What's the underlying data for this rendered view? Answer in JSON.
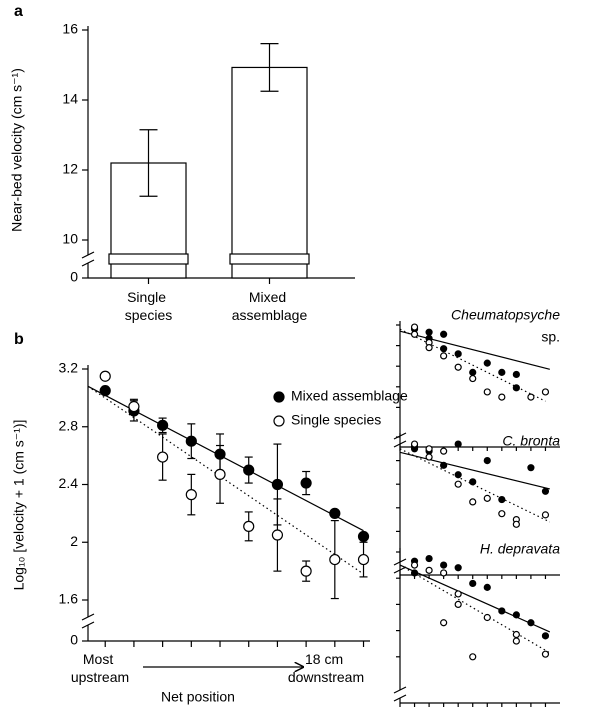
{
  "chart_data": [
    {
      "type": "bar",
      "panel_label": "a",
      "ylabel": "Near-bed velocity (cm s⁻¹)",
      "categories": [
        "Single species",
        "Mixed assemblage"
      ],
      "values": [
        12.2,
        14.93
      ],
      "errors": [
        0.95,
        0.68
      ],
      "color": "#ffffff",
      "ylim": [
        10,
        16
      ],
      "yticks": [
        0,
        10,
        12,
        14,
        16
      ],
      "axis_break": true
    },
    {
      "type": "scatter",
      "panel_label": "b",
      "ylabel": "Log₁₀ [velocity + 1 (cm s⁻¹)]",
      "xlabel": "Net position",
      "annotations": [
        "Most upstream",
        "18 cm downstream"
      ],
      "legend": "upper right",
      "x": [
        1,
        2,
        3,
        4,
        5,
        6,
        7,
        8,
        9,
        10
      ],
      "xlim": [
        0.4,
        10.4
      ],
      "xticks": [
        1,
        2,
        3,
        4,
        5,
        6,
        7,
        8,
        9,
        10
      ],
      "ylim": [
        1.6,
        3.2
      ],
      "yticks": [
        0,
        1.6,
        2.0,
        2.4,
        2.8,
        3.2
      ],
      "axis_break": true,
      "series": [
        {
          "name": "Mixed assemblage",
          "color": "#000000",
          "marker": "filled",
          "line": "solid",
          "values": [
            3.05,
            2.91,
            2.81,
            2.7,
            2.61,
            2.5,
            2.4,
            2.41,
            2.2,
            2.04
          ],
          "errors": [
            null,
            0.07,
            0.05,
            0.12,
            0.14,
            0.09,
            0.28,
            0.08,
            null,
            null
          ],
          "fit": {
            "x": [
              0.4,
              10.0
            ],
            "values": [
              3.08,
              2.08
            ]
          }
        },
        {
          "name": "Single species",
          "color": "#000000",
          "marker": "open",
          "line": "dotted",
          "values": [
            3.15,
            2.94,
            2.59,
            2.33,
            2.47,
            2.11,
            2.05,
            1.8,
            1.88,
            1.88
          ],
          "errors": [
            null,
            0.05,
            0.16,
            0.14,
            0.2,
            0.1,
            0.25,
            0.07,
            0.27,
            0.12
          ],
          "fit": {
            "x": [
              0.4,
              10.0
            ],
            "values": [
              3.08,
              1.78
            ]
          }
        }
      ]
    },
    {
      "type": "scatter",
      "title": "Cheumatopsyche",
      "subtitle": "sp.",
      "tick_labels": false,
      "axis_break": true,
      "xlim": [
        0,
        11
      ],
      "xticks": [
        0,
        1,
        2,
        3,
        4,
        5,
        6,
        7,
        8,
        9,
        10
      ],
      "ylim": [
        0,
        10
      ],
      "yticks": [
        2,
        4,
        6,
        8,
        10
      ],
      "series": [
        {
          "color": "#000000",
          "marker": "filled",
          "line": "solid",
          "x": [
            1,
            2,
            2,
            3,
            3,
            4,
            5,
            6,
            7,
            8,
            8
          ],
          "values": [
            9.6,
            9.3,
            8.7,
            9.1,
            7.7,
            7.2,
            5.4,
            6.3,
            5.4,
            5.2,
            3.9
          ],
          "fit": {
            "x": [
              0,
              10.3
            ],
            "values": [
              9.4,
              5.7
            ]
          }
        },
        {
          "color": "#000000",
          "marker": "open",
          "line": "dotted",
          "x": [
            1,
            1,
            2,
            2,
            3,
            4,
            5,
            6,
            7,
            9,
            10
          ],
          "values": [
            9.8,
            9.1,
            8.3,
            7.8,
            7.0,
            5.9,
            4.8,
            3.5,
            3.0,
            3.0,
            3.5
          ],
          "fit": {
            "x": [
              0,
              10
            ],
            "values": [
              9.6,
              2.6
            ]
          }
        }
      ]
    },
    {
      "type": "scatter",
      "title": "C. bronta",
      "tick_labels": false,
      "axis_break": true,
      "xlim": [
        0,
        11
      ],
      "xticks": [
        0,
        1,
        2,
        3,
        4,
        5,
        6,
        7,
        8,
        9,
        10
      ],
      "ylim": [
        0,
        10
      ],
      "yticks": [
        2,
        4,
        6,
        8,
        10
      ],
      "series": [
        {
          "color": "#000000",
          "marker": "filled",
          "line": "solid",
          "x": [
            1,
            1,
            2,
            3,
            4,
            4,
            5,
            6,
            7,
            9,
            10
          ],
          "values": [
            9.2,
            9.0,
            8.8,
            7.6,
            9.4,
            6.8,
            6.2,
            8.0,
            4.7,
            7.4,
            5.4
          ],
          "fit": {
            "x": [
              0,
              10.3
            ],
            "values": [
              8.7,
              5.6
            ]
          }
        },
        {
          "color": "#000000",
          "marker": "open",
          "line": "dotted",
          "x": [
            1,
            2,
            2,
            3,
            4,
            5,
            6,
            7,
            8,
            8,
            10
          ],
          "values": [
            9.4,
            9.0,
            8.3,
            8.8,
            6.0,
            4.5,
            4.8,
            3.5,
            3.0,
            2.6,
            3.4
          ],
          "fit": {
            "x": [
              0,
              10.3
            ],
            "values": [
              9.0,
              2.8
            ]
          }
        }
      ]
    },
    {
      "type": "scatter",
      "title": "H. depravata",
      "tick_labels": false,
      "axis_break": true,
      "xlim": [
        0,
        11
      ],
      "xticks": [
        0,
        1,
        2,
        3,
        4,
        5,
        6,
        7,
        8,
        9,
        10
      ],
      "ylim": [
        0,
        10
      ],
      "yticks": [
        2,
        4,
        6,
        8,
        10
      ],
      "series": [
        {
          "color": "#000000",
          "marker": "filled",
          "line": "solid",
          "x": [
            1,
            1,
            2,
            3,
            4,
            5,
            6,
            7,
            8,
            9,
            10
          ],
          "values": [
            9.3,
            8.4,
            9.5,
            9.0,
            8.8,
            7.6,
            7.3,
            5.5,
            5.2,
            4.6,
            3.6
          ],
          "fit": {
            "x": [
              0,
              10.3
            ],
            "values": [
              9.0,
              3.9
            ]
          }
        },
        {
          "color": "#000000",
          "marker": "open",
          "line": "dotted",
          "x": [
            1,
            2,
            3,
            3,
            4,
            4,
            5,
            6,
            8,
            8,
            10
          ],
          "values": [
            9.0,
            8.6,
            8.4,
            4.6,
            6.8,
            6.0,
            2.0,
            5.0,
            3.2,
            3.7,
            2.2
          ],
          "fit": {
            "x": [
              0,
              10.3
            ],
            "values": [
              9.0,
              2.3
            ]
          }
        }
      ]
    }
  ]
}
